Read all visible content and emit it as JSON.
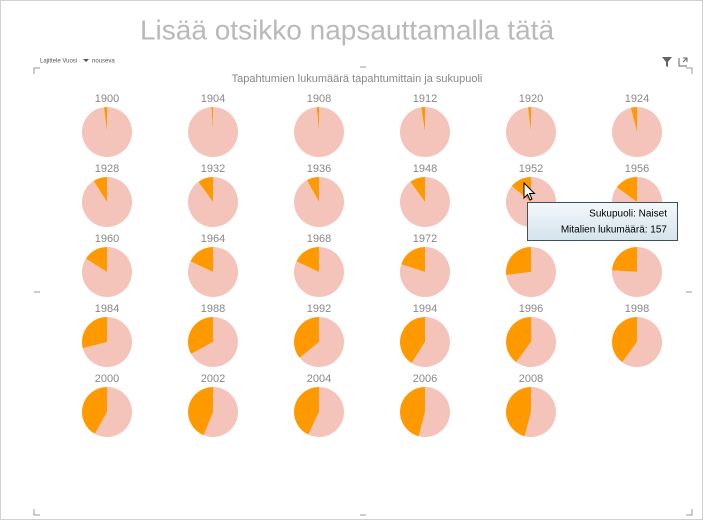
{
  "header": {
    "title": "Lisää otsikko napsauttamalla tätä",
    "sort_label": "Lajittele Vuosi",
    "sort_order": "nouseva"
  },
  "chart_data": {
    "type": "pie-multiples",
    "title": "Tapahtumien lukumäärä tapahtumittain ja sukupuoli",
    "categories": [
      "1900",
      "1904",
      "1908",
      "1912",
      "1920",
      "1924",
      "1928",
      "1932",
      "1936",
      "1948",
      "1952",
      "1956",
      "1960",
      "1964",
      "1968",
      "1972",
      null,
      null,
      "1984",
      "1988",
      "1992",
      "1994",
      "1996",
      "1998",
      "2000",
      "2002",
      "2004",
      "2006",
      "2008"
    ],
    "series": [
      {
        "name": "Naiset",
        "color": "#ff9900",
        "values": [
          2,
          1,
          1.5,
          2.5,
          2,
          4,
          9,
          10,
          8,
          10,
          14,
          15,
          16,
          18,
          18,
          20,
          27,
          24,
          29,
          33,
          36,
          41,
          40,
          40,
          42,
          44,
          43,
          46,
          46
        ]
      },
      {
        "color": "#f4c3b9",
        "values": [
          98,
          99,
          98.5,
          97.5,
          98,
          96,
          91,
          90,
          92,
          90,
          86,
          85,
          84,
          82,
          82,
          80,
          73,
          76,
          71,
          67,
          64,
          59,
          60,
          60,
          58,
          56,
          57,
          54,
          54
        ]
      }
    ]
  },
  "tooltip": {
    "lines": [
      "Sukupuoli: Naiset",
      "Mitalien lukumäärä: 157"
    ]
  }
}
